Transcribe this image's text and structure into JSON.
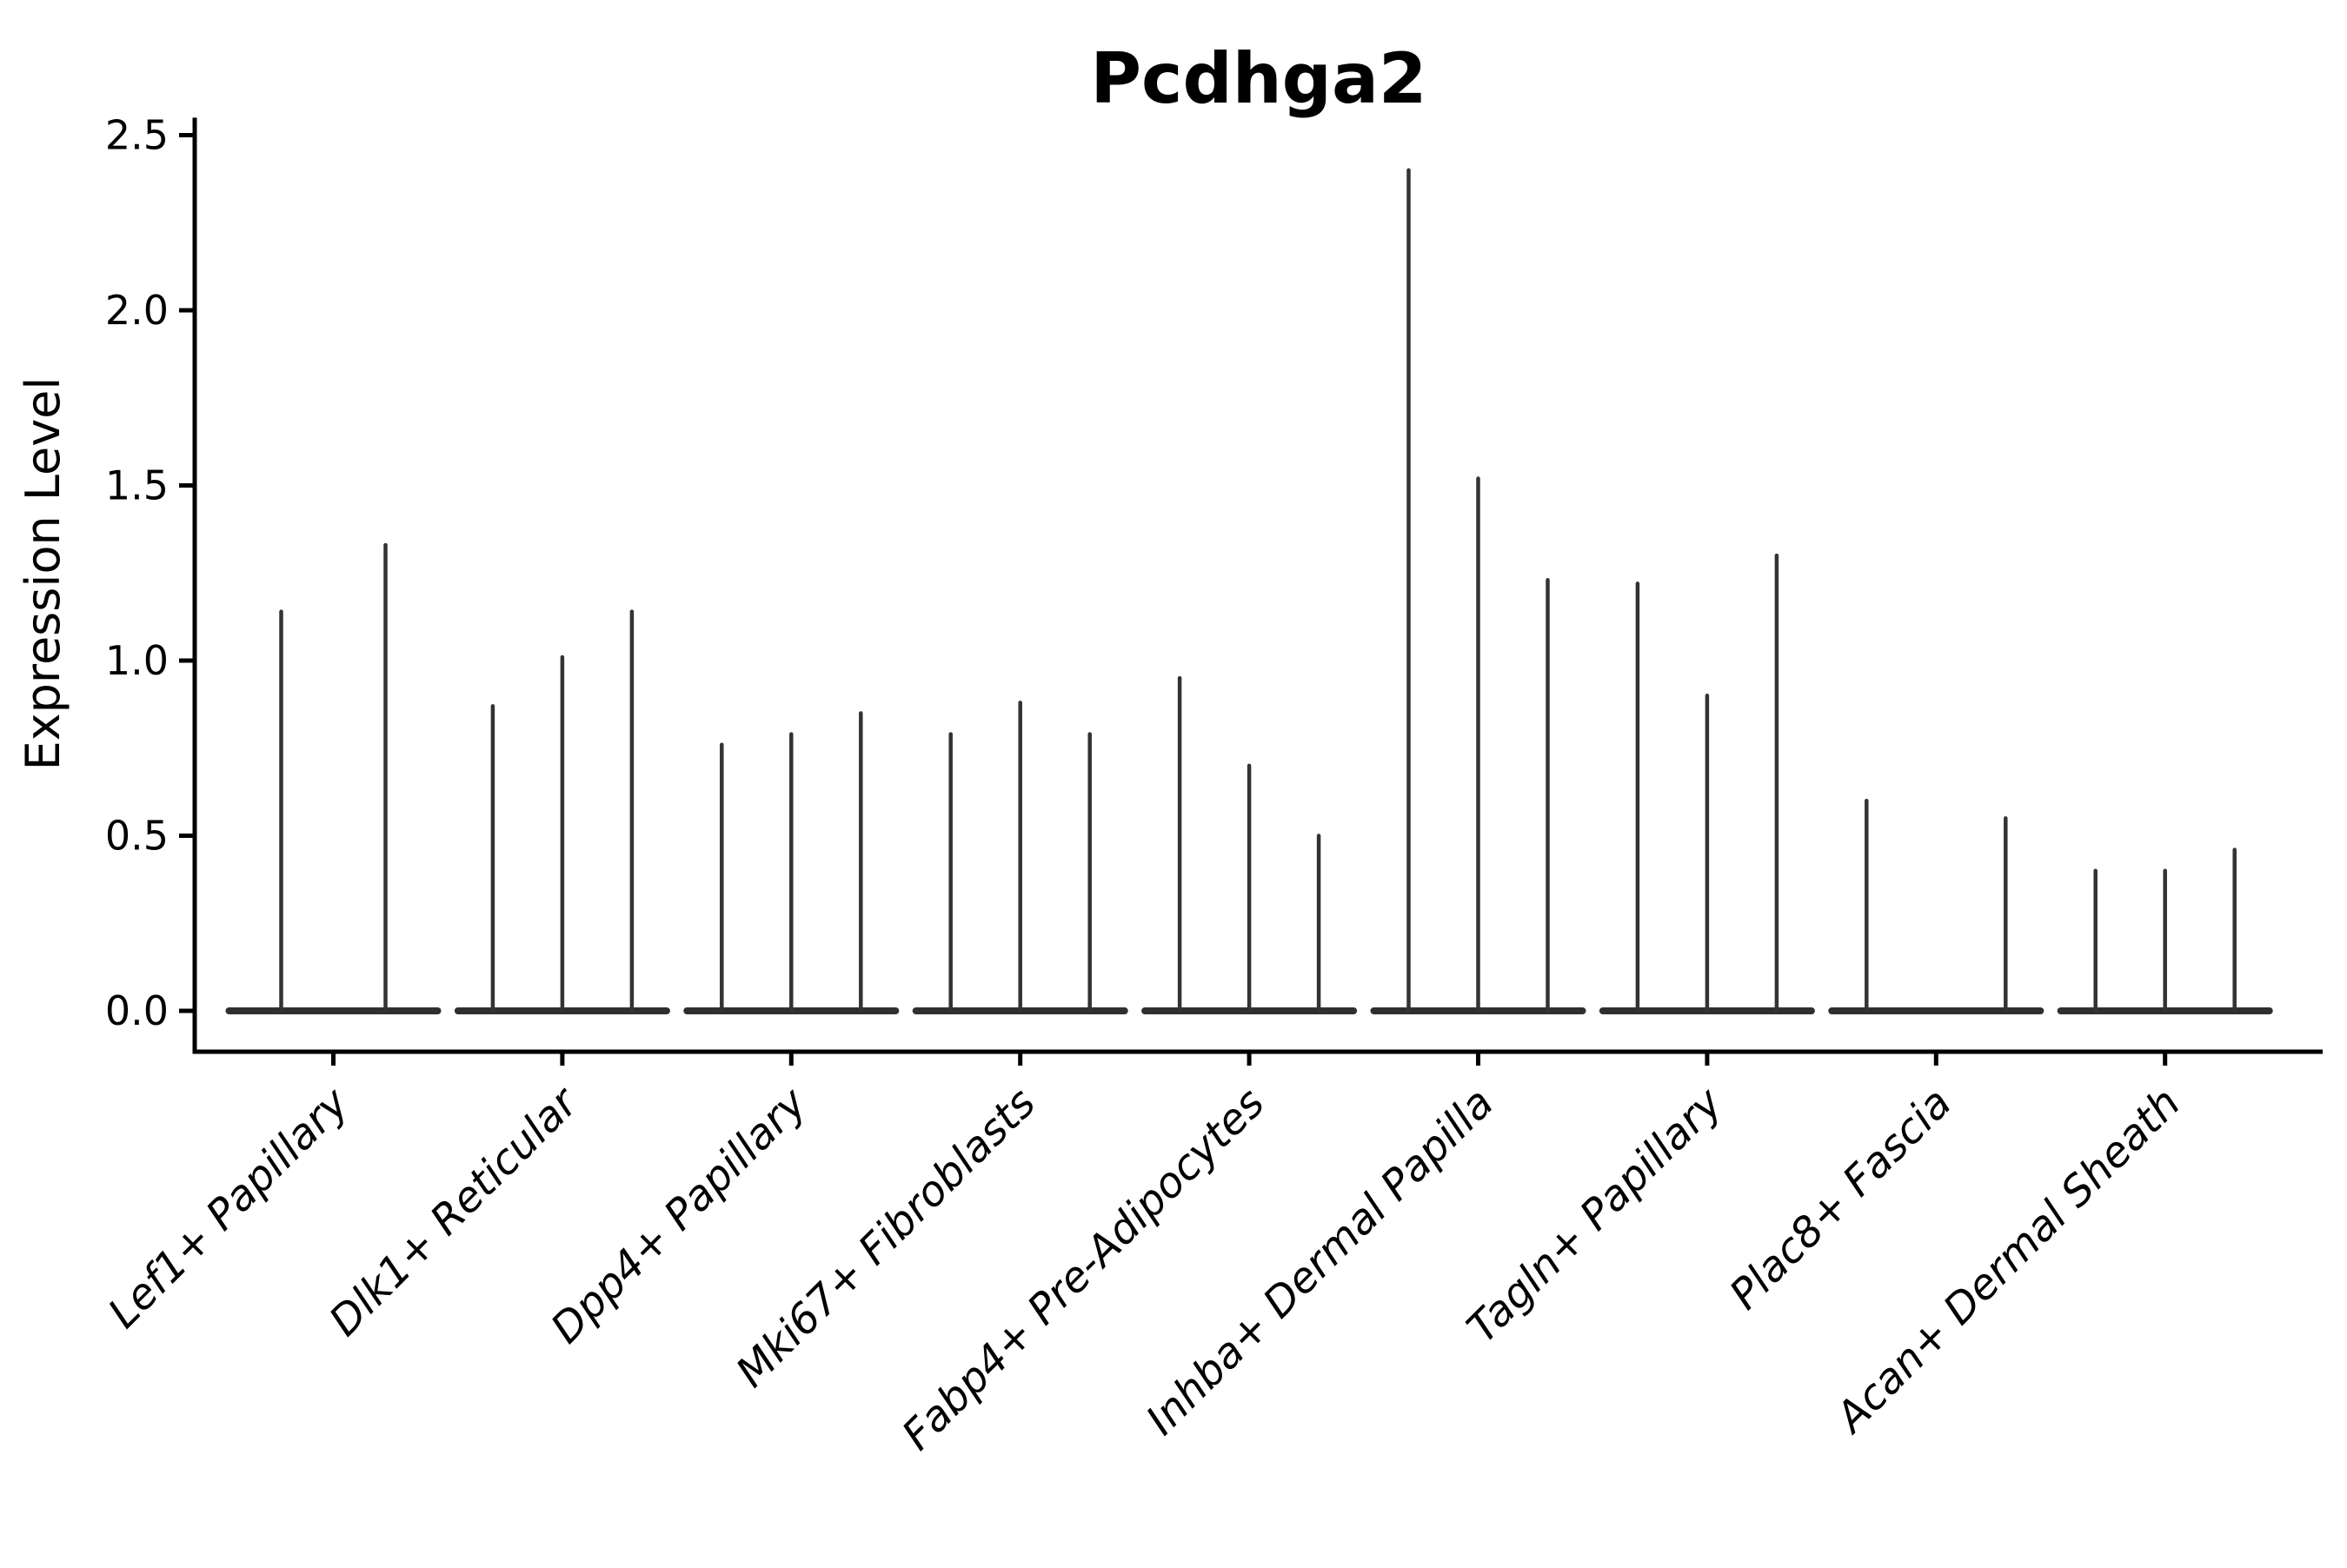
{
  "figure": {
    "background": "#ffffff",
    "axis_color": "#000000",
    "violin_color": "#333333",
    "baseline_color": "#2f2f2f"
  },
  "chart_data": {
    "type": "violin",
    "subtype": "collapsed-violins-at-zero-with-max-spikes",
    "title": "Pcdhga2",
    "xlabel": "",
    "ylabel": "Expression Level",
    "ylim": [
      -0.12,
      2.55
    ],
    "yticks": [
      0.0,
      0.5,
      1.0,
      1.5,
      2.0,
      2.5
    ],
    "ytick_labels": [
      "0.0",
      "0.5",
      "1.0",
      "1.5",
      "2.0",
      "2.5"
    ],
    "grid": false,
    "legend_position": "none",
    "x_tick_label_rotation_deg": 45,
    "categories": [
      "Lef1+ Papillary",
      "Dlk1+ Reticular",
      "Dpp4+ Papillary",
      "Mki67+ Fibroblasts",
      "Fabp4+ Pre-Adipocytes",
      "Inhba+ Dermal Papilla",
      "Tagln+ Papillary",
      "Plac8+ Fascia",
      "Acan+ Dermal Sheath"
    ],
    "groups": [
      {
        "label": "Lef1+ Papillary",
        "spike_values": [
          1.14,
          1.33
        ]
      },
      {
        "label": "Dlk1+ Reticular",
        "spike_values": [
          0.87,
          1.01,
          1.14
        ]
      },
      {
        "label": "Dpp4+ Papillary",
        "spike_values": [
          0.76,
          0.79,
          0.85
        ]
      },
      {
        "label": "Mki67+ Fibroblasts",
        "spike_values": [
          0.79,
          0.88,
          0.79
        ]
      },
      {
        "label": "Fabp4+ Pre-Adipocytes",
        "spike_values": [
          0.95,
          0.7,
          0.5
        ]
      },
      {
        "label": "Inhba+ Dermal Papilla",
        "spike_values": [
          2.4,
          1.52,
          1.23
        ]
      },
      {
        "label": "Tagln+ Papillary",
        "spike_values": [
          1.22,
          0.9,
          1.3
        ]
      },
      {
        "label": "Plac8+ Fascia",
        "spike_values": [
          0.6,
          null,
          0.55
        ]
      },
      {
        "label": "Acan+ Dermal Sheath",
        "spike_values": [
          0.4,
          0.4,
          0.46
        ]
      }
    ]
  }
}
